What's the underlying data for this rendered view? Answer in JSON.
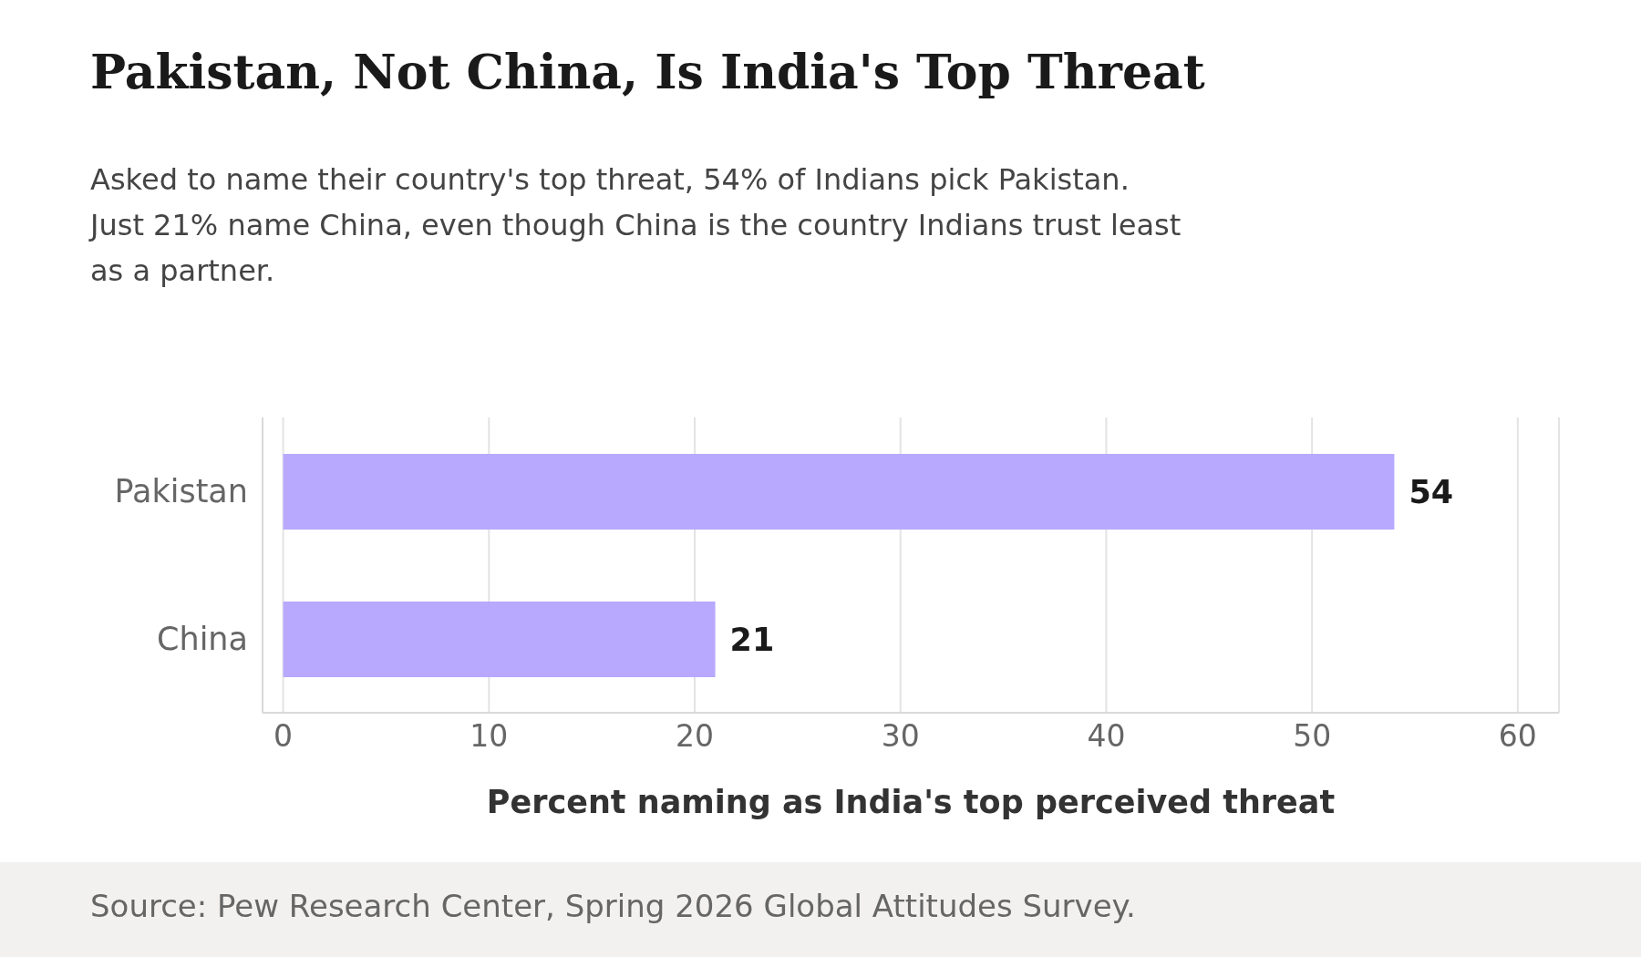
{
  "chart_data": {
    "type": "bar",
    "orientation": "horizontal",
    "title": "Pakistan, Not China, Is India's Top Threat",
    "subtitle": "Asked to name their country's top threat, 54% of Indians pick Pakistan. Just 21% name China, even though China is the country Indians trust least as a partner.",
    "categories": [
      "Pakistan",
      "China"
    ],
    "values": [
      54,
      21
    ],
    "color": "#b8a9fe",
    "xlim": [
      -1,
      62
    ],
    "xticks": [
      0,
      10,
      20,
      30,
      40,
      50,
      60
    ],
    "grid": "x",
    "data_labels": true,
    "xlabel": "Percent naming as India's top perceived threat",
    "annotations": [
      "Source: Pew Research Center, Spring 2026 Global Attitudes Survey."
    ]
  }
}
